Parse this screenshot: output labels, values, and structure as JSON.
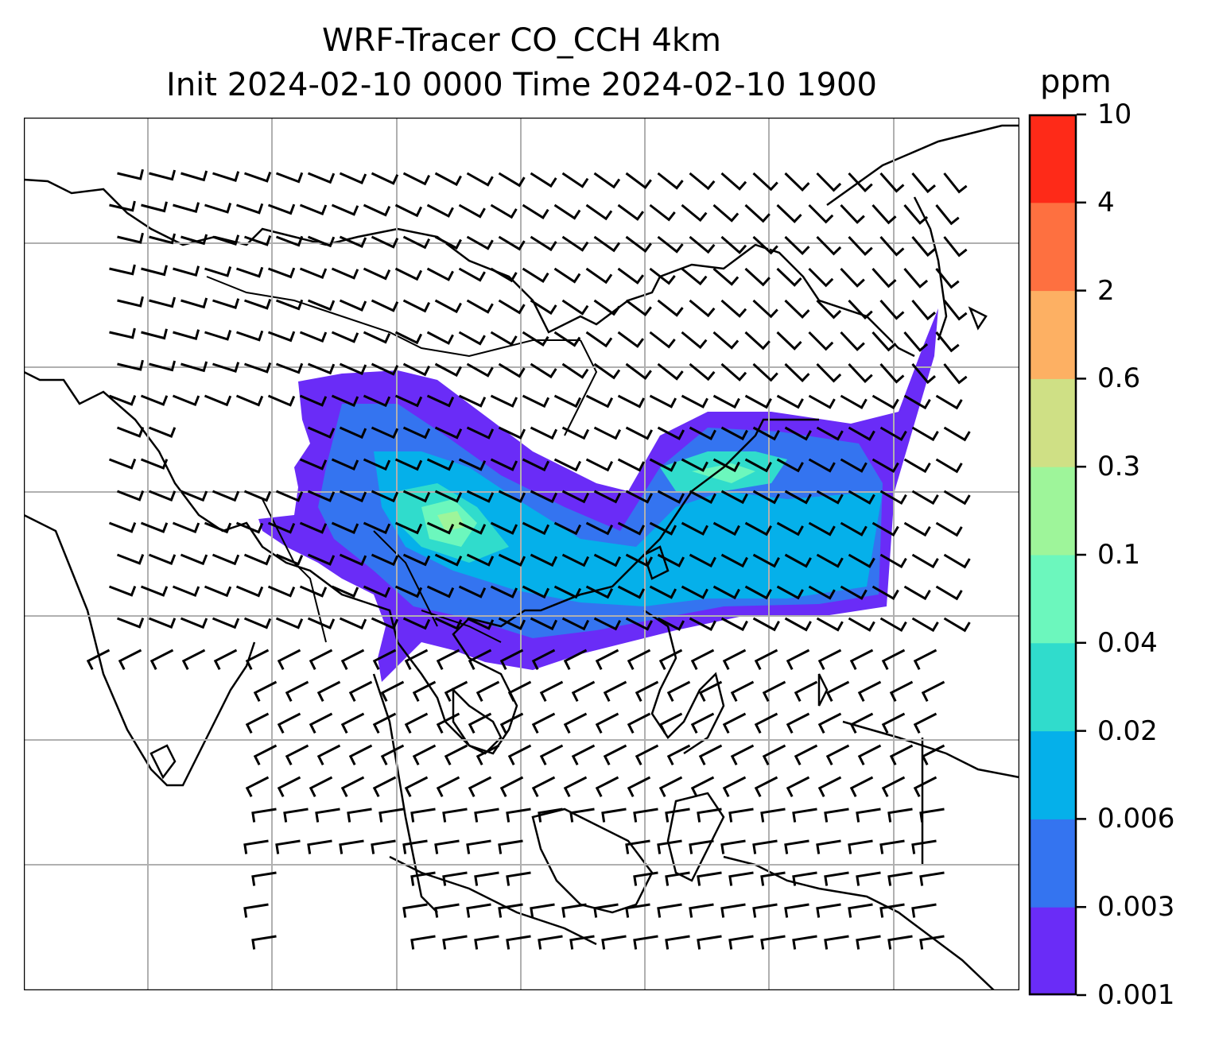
{
  "title": {
    "line1": "WRF-Tracer CO_CCH 4km",
    "line2": "Init 2024-02-10 0000 Time 2024-02-10 1900"
  },
  "colorbar": {
    "units": "ppm",
    "levels": [
      "0.001",
      "0.003",
      "0.006",
      "0.02",
      "0.04",
      "0.1",
      "0.3",
      "0.6",
      "2",
      "4",
      "10"
    ],
    "colors": [
      "#6a2cf7",
      "#3474f0",
      "#05b0ea",
      "#30dccc",
      "#6cf7bd",
      "#9ef59a",
      "#cfe085",
      "#fdb063",
      "#fe7040",
      "#fe2a18"
    ]
  },
  "map": {
    "region": "East / Southeast Asia",
    "gridlines": true,
    "overlays": [
      "coastlines",
      "country borders",
      "wind barbs",
      "CO tracer concentration shading"
    ],
    "colors": {
      "background": "#ffffff",
      "coastline": "#000000",
      "gridline": "#b0b0b0",
      "barb": "#000000"
    }
  }
}
